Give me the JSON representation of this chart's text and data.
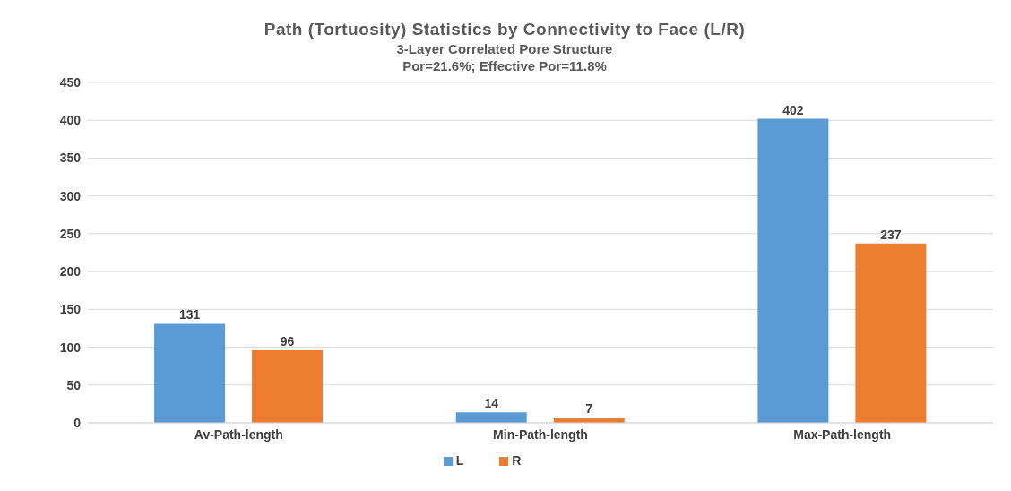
{
  "chart_data": {
    "type": "bar",
    "title": "Path (Tortuosity) Statistics by Connectivity to Face (L/R)",
    "subtitle": "3-Layer Correlated Pore Structure\nPor=21.6%; Effective Por=11.8%",
    "categories": [
      "Av-Path-length",
      "Min-Path-length",
      "Max-Path-length"
    ],
    "series": [
      {
        "name": "L",
        "color": "#5b9bd5",
        "values": [
          131,
          14,
          402
        ]
      },
      {
        "name": "R",
        "color": "#ed7d31",
        "values": [
          96,
          7,
          237
        ]
      }
    ],
    "ylim": [
      0,
      450
    ],
    "yticks": [
      0,
      50,
      100,
      150,
      200,
      250,
      300,
      350,
      400,
      450
    ],
    "grid": "y",
    "legend": "bottom",
    "data_labels": true
  }
}
